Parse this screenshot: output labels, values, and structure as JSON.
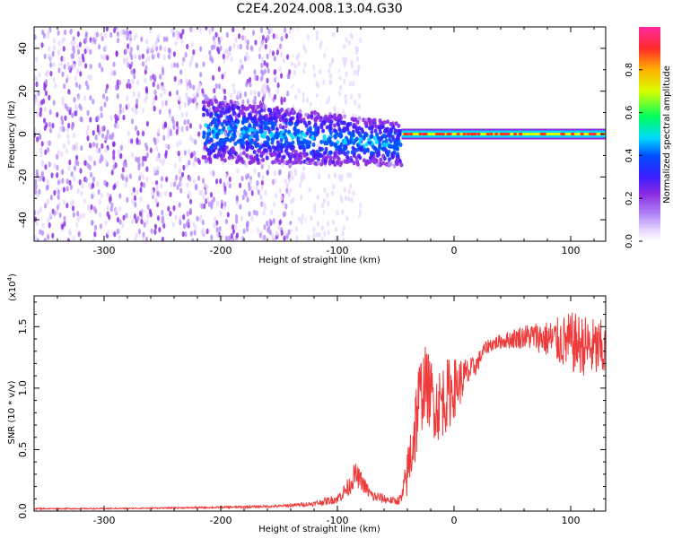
{
  "title": "C2E4.2024.008.13.04.G30",
  "colors": {
    "snr_line": "#ee3a3a",
    "axis": "#000000",
    "colormap": [
      "#ffffff",
      "#e8d8ff",
      "#b48cf7",
      "#8a2be2",
      "#3c1cff",
      "#0050ff",
      "#00d8ff",
      "#00ff60",
      "#d8ff00",
      "#ffb000",
      "#ff2a2a",
      "#ff2aa0"
    ]
  },
  "chart_data": [
    {
      "type": "heatmap",
      "xlabel": "Height of straight line (km)",
      "ylabel": "Frequency (Hz)",
      "xlim": [
        -360,
        130
      ],
      "ylim": [
        -50,
        50
      ],
      "xticks": [
        -300,
        -200,
        -100,
        0,
        100
      ],
      "yticks": [
        -40,
        -20,
        0,
        20,
        40
      ],
      "colorbar": {
        "label": "Normalized spectral amplitude",
        "range": [
          0,
          1
        ],
        "ticks": [
          "0.0",
          "0.2",
          "0.4",
          "0.6",
          "0.8"
        ]
      },
      "features": [
        {
          "region": "broadband noise",
          "x_range": [
            -360,
            -140
          ],
          "freq_range": [
            -50,
            50
          ],
          "amplitude": 0.15
        },
        {
          "region": "spread band",
          "x_range": [
            -215,
            -45
          ],
          "center_freq": [
            2,
            -5
          ],
          "width_hz": [
            30,
            20
          ],
          "amplitude": 0.3
        },
        {
          "region": "narrow carrier",
          "x_range": [
            -45,
            130
          ],
          "center_freq": [
            0,
            0
          ],
          "width_hz": [
            3,
            3
          ],
          "amplitude": 0.9
        }
      ]
    },
    {
      "type": "line",
      "xlabel": "Height of straight line (km)",
      "ylabel": "SNR (10 * v/v)",
      "yscale_label": "(x10",
      "yscale_exp": "4",
      "xlim": [
        -360,
        130
      ],
      "ylim": [
        0,
        1.75
      ],
      "xticks": [
        -300,
        -200,
        -100,
        0,
        100
      ],
      "yticks": [
        "0.0",
        "0.5",
        "1.0",
        "1.5"
      ],
      "series": [
        {
          "x": [
            -360,
            -300,
            -250,
            -200,
            -150,
            -120,
            -100,
            -90,
            -85,
            -80,
            -75,
            -70,
            -60,
            -50,
            -45,
            -40,
            -35,
            -30,
            -25,
            -20,
            -15,
            -10,
            -5,
            0,
            5,
            10,
            15,
            20,
            25,
            30,
            40,
            50,
            60,
            70,
            80,
            90,
            100,
            110,
            120,
            130
          ],
          "y": [
            0.02,
            0.02,
            0.025,
            0.03,
            0.04,
            0.06,
            0.1,
            0.2,
            0.3,
            0.25,
            0.18,
            0.12,
            0.1,
            0.08,
            0.1,
            0.3,
            0.6,
            0.9,
            1.05,
            0.95,
            0.85,
            0.9,
            0.95,
            1.0,
            1.05,
            1.1,
            1.15,
            1.2,
            1.3,
            1.35,
            1.38,
            1.4,
            1.42,
            1.42,
            1.4,
            1.38,
            1.37,
            1.35,
            1.32,
            1.3
          ],
          "noise": [
            0.005,
            0.005,
            0.005,
            0.008,
            0.01,
            0.02,
            0.04,
            0.08,
            0.1,
            0.08,
            0.06,
            0.05,
            0.04,
            0.03,
            0.05,
            0.2,
            0.35,
            0.35,
            0.3,
            0.3,
            0.3,
            0.3,
            0.3,
            0.25,
            0.2,
            0.15,
            0.1,
            0.08,
            0.06,
            0.06,
            0.06,
            0.08,
            0.1,
            0.12,
            0.15,
            0.2,
            0.25,
            0.25,
            0.25,
            0.25
          ]
        }
      ]
    }
  ]
}
